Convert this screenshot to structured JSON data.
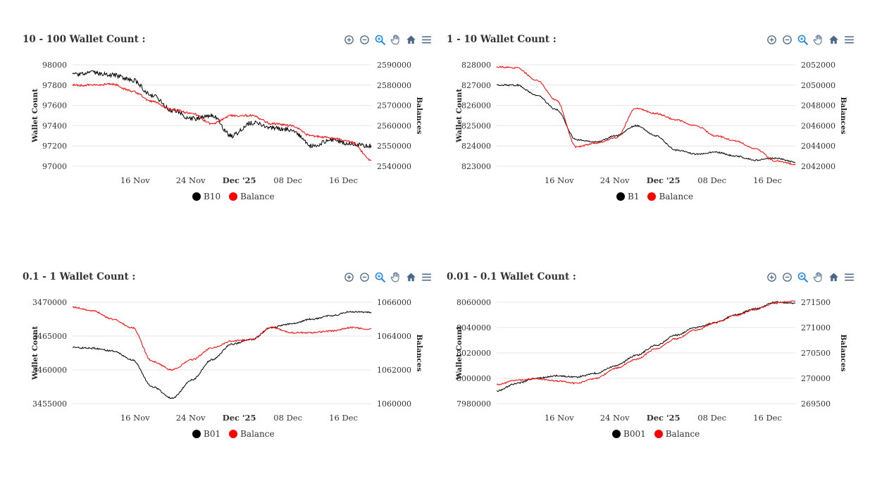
{
  "charts": [
    {
      "title": "10 - 100 Wallet Count :",
      "left_axis_title": "Wallet Count",
      "right_axis_title": "Balances",
      "left_ticks": [
        "97000",
        "97200",
        "97400",
        "97600",
        "97800",
        "98000"
      ],
      "right_ticks": [
        "2540000",
        "2550000",
        "2560000",
        "2570000",
        "2580000",
        "2590000"
      ],
      "x_ticks": [
        "16 Nov",
        "24 Nov",
        "Dec '25",
        "08 Dec",
        "16 Dec"
      ],
      "legend": [
        "B10",
        "Balance"
      ]
    },
    {
      "title": "1 - 10 Wallet Count :",
      "left_axis_title": "Wallet Count",
      "right_axis_title": "Balances",
      "left_ticks": [
        "823000",
        "824000",
        "825000",
        "826000",
        "827000",
        "828000"
      ],
      "right_ticks": [
        "2042000",
        "2044000",
        "2046000",
        "2048000",
        "2050000",
        "2052000"
      ],
      "x_ticks": [
        "16 Nov",
        "24 Nov",
        "Dec '25",
        "08 Dec",
        "16 Dec"
      ],
      "legend": [
        "B1",
        "Balance"
      ]
    },
    {
      "title": "0.1 - 1 Wallet Count :",
      "left_axis_title": "Wallet Count",
      "right_axis_title": "Balances",
      "left_ticks": [
        "3455000",
        "3460000",
        "3465000",
        "3470000"
      ],
      "right_ticks": [
        "1060000",
        "1062000",
        "1064000",
        "1066000"
      ],
      "x_ticks": [
        "16 Nov",
        "24 Nov",
        "Dec '25",
        "08 Dec",
        "16 Dec"
      ],
      "legend": [
        "B01",
        "Balance"
      ]
    },
    {
      "title": "0.01 - 0.1 Wallet Count :",
      "left_axis_title": "Wallet Count",
      "right_axis_title": "Balances",
      "left_ticks": [
        "7980000",
        "8000000",
        "8020000",
        "8040000",
        "8060000"
      ],
      "right_ticks": [
        "269500",
        "270000",
        "270500",
        "271000",
        "271500"
      ],
      "x_ticks": [
        "16 Nov",
        "24 Nov",
        "Dec '25",
        "08 Dec",
        "16 Dec"
      ],
      "legend": [
        "B001",
        "Balance"
      ]
    }
  ],
  "colors": {
    "count_series": "#000000",
    "balance_series": "#ff0000",
    "icon": "#4a6785",
    "icon_active": "#1e88e5"
  },
  "toolbar_icons": [
    "zoom-in-icon",
    "zoom-out-icon",
    "selection-zoom-icon",
    "pan-hand-icon",
    "home-reset-icon",
    "menu-icon"
  ],
  "chart_data": [
    {
      "type": "line",
      "title": "10 - 100 Wallet Count :",
      "x": [
        "Nov 07",
        "Nov 10",
        "Nov 13",
        "Nov 16",
        "Nov 19",
        "Nov 22",
        "Nov 25",
        "Nov 28",
        "Dec 01",
        "Dec 04",
        "Dec 07",
        "Dec 10",
        "Dec 13",
        "Dec 16",
        "Dec 19",
        "Dec 20"
      ],
      "x_ticks": [
        "16 Nov",
        "24 Nov",
        "Dec '25",
        "08 Dec",
        "16 Dec"
      ],
      "series": [
        {
          "name": "B10",
          "axis": "left",
          "values": [
            97900,
            97920,
            97900,
            97850,
            97700,
            97550,
            97470,
            97500,
            97300,
            97430,
            97380,
            97360,
            97200,
            97260,
            97220,
            97200
          ]
        },
        {
          "name": "Balance",
          "axis": "right",
          "values": [
            2580000,
            2580000,
            2580500,
            2577000,
            2572000,
            2568000,
            2566000,
            2561000,
            2565000,
            2565000,
            2561000,
            2560000,
            2555000,
            2554000,
            2552000,
            2543000
          ]
        }
      ],
      "ylim_left": [
        97000,
        98000
      ],
      "ylim_right": [
        2540000,
        2590000
      ]
    },
    {
      "type": "line",
      "title": "1 - 10 Wallet Count :",
      "x": [
        "Nov 07",
        "Nov 10",
        "Nov 13",
        "Nov 16",
        "Nov 19",
        "Nov 22",
        "Nov 25",
        "Nov 28",
        "Dec 01",
        "Dec 04",
        "Dec 07",
        "Dec 10",
        "Dec 13",
        "Dec 16",
        "Dec 19",
        "Dec 20"
      ],
      "x_ticks": [
        "16 Nov",
        "24 Nov",
        "Dec '25",
        "08 Dec",
        "16 Dec"
      ],
      "series": [
        {
          "name": "B1",
          "axis": "left",
          "values": [
            827000,
            827000,
            826500,
            825800,
            824300,
            824200,
            824500,
            825000,
            824500,
            823800,
            823600,
            823700,
            823500,
            823300,
            823400,
            823200
          ]
        },
        {
          "name": "Balance",
          "axis": "right",
          "values": [
            2051800,
            2051700,
            2050500,
            2048500,
            2043900,
            2044300,
            2044800,
            2047700,
            2047200,
            2046600,
            2046000,
            2045000,
            2044500,
            2043700,
            2042500,
            2042200
          ]
        }
      ],
      "ylim_left": [
        823000,
        828000
      ],
      "ylim_right": [
        2042000,
        2052000
      ]
    },
    {
      "type": "line",
      "title": "0.1 - 1 Wallet Count :",
      "x": [
        "Nov 07",
        "Nov 10",
        "Nov 13",
        "Nov 16",
        "Nov 19",
        "Nov 22",
        "Nov 25",
        "Nov 28",
        "Dec 01",
        "Dec 04",
        "Dec 07",
        "Dec 10",
        "Dec 13",
        "Dec 16",
        "Dec 19",
        "Dec 20"
      ],
      "x_ticks": [
        "16 Nov",
        "24 Nov",
        "Dec '25",
        "08 Dec",
        "16 Dec"
      ],
      "series": [
        {
          "name": "B01",
          "axis": "left",
          "values": [
            3463300,
            3463200,
            3462800,
            3461500,
            3457500,
            3455800,
            3458500,
            3461500,
            3463800,
            3464500,
            3466300,
            3466800,
            3467500,
            3468000,
            3468600,
            3468500
          ]
        },
        {
          "name": "Balance",
          "axis": "right",
          "values": [
            1065700,
            1065500,
            1065000,
            1064500,
            1062500,
            1062000,
            1062600,
            1063300,
            1063700,
            1063800,
            1064500,
            1064200,
            1064200,
            1064300,
            1064500,
            1064400
          ]
        }
      ],
      "ylim_left": [
        3455000,
        3470000
      ],
      "ylim_right": [
        1060000,
        1066000
      ]
    },
    {
      "type": "line",
      "title": "0.01 - 0.1 Wallet Count :",
      "x": [
        "Nov 07",
        "Nov 10",
        "Nov 13",
        "Nov 16",
        "Nov 19",
        "Nov 22",
        "Nov 25",
        "Nov 28",
        "Dec 01",
        "Dec 04",
        "Dec 07",
        "Dec 10",
        "Dec 13",
        "Dec 16",
        "Dec 19",
        "Dec 20"
      ],
      "x_ticks": [
        "16 Nov",
        "24 Nov",
        "Dec '25",
        "08 Dec",
        "16 Dec"
      ],
      "series": [
        {
          "name": "B001",
          "axis": "left",
          "values": [
            7990000,
            7996000,
            8000000,
            8002000,
            8001000,
            8004000,
            8010000,
            8018000,
            8026000,
            8034000,
            8040000,
            8044000,
            8050000,
            8055000,
            8060000,
            8059000
          ]
        },
        {
          "name": "Balance",
          "axis": "right",
          "values": [
            269880,
            269960,
            269990,
            269950,
            269900,
            270000,
            270200,
            270370,
            270580,
            270780,
            270950,
            271100,
            271240,
            271360,
            271480,
            271530
          ]
        }
      ],
      "ylim_left": [
        7980000,
        8060000
      ],
      "ylim_right": [
        269500,
        271500
      ]
    }
  ]
}
